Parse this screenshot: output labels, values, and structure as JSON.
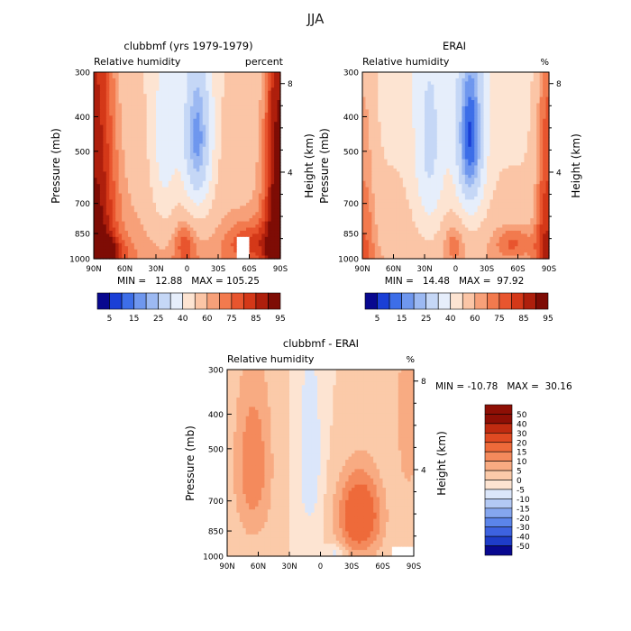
{
  "page_title": "JJA",
  "panels": [
    {
      "id": "model",
      "title": "clubbmf (yrs 1979-1979)",
      "left_label": "Relative humidity",
      "right_label": "percent",
      "stats": "MIN =   12.88   MAX = 105.25"
    },
    {
      "id": "obs",
      "title": "ERAI",
      "left_label": "Relative humidity",
      "right_label": "%",
      "stats": "MIN =   14.48   MAX =  97.92"
    },
    {
      "id": "diff",
      "title": "clubbmf - ERAI",
      "left_label": "Relative humidity",
      "right_label": "%",
      "stats": "MIN = -10.78   MAX =  30.16"
    }
  ],
  "axes": {
    "ylabel": "Pressure (mb)",
    "y2label": "Height (km)",
    "pressure_ticks": [
      "300",
      "400",
      "500",
      "700",
      "850",
      "1000"
    ],
    "height_ticks": [
      "8",
      "4"
    ],
    "lat_ticks": [
      "90N",
      "60N",
      "30N",
      "0",
      "30S",
      "60S",
      "90S"
    ]
  },
  "colorbars": {
    "abs": [
      "5",
      "15",
      "25",
      "40",
      "60",
      "75",
      "85",
      "95"
    ],
    "diff": [
      "50",
      "40",
      "30",
      "20",
      "15",
      "10",
      "5",
      "0",
      "-5",
      "-10",
      "-15",
      "-20",
      "-30",
      "-40",
      "-50"
    ]
  },
  "colors": {
    "abs": [
      "#08088f",
      "#1a3fd6",
      "#3d6ee8",
      "#6f97ee",
      "#9cb9f2",
      "#c5d7f6",
      "#e6eefb",
      "#fde4d2",
      "#fbc5a6",
      "#f7a079",
      "#f27a4e",
      "#e8552e",
      "#d43818",
      "#ae1f0c",
      "#7e0c05"
    ],
    "diff": [
      "#08088f",
      "#1e3cc8",
      "#3d62e0",
      "#5b84ea",
      "#85a6ef",
      "#b3c9f4",
      "#dbe6fa",
      "#fde4d2",
      "#fbcaa9",
      "#f8ab82",
      "#f48a5c",
      "#ee6a3a",
      "#e04a22",
      "#c02b10",
      "#8e0f05"
    ]
  },
  "chart_data": [
    {
      "type": "heatmap",
      "title": "clubbmf (yrs 1979-1979)",
      "xlabel": "",
      "ylabel": "Pressure (mb)",
      "x": [
        90,
        60,
        30,
        0,
        -30,
        -60,
        -90
      ],
      "y": [
        300,
        400,
        500,
        700,
        850,
        1000
      ],
      "min": 12.88,
      "max": 105.25,
      "levels": [
        5,
        10,
        15,
        20,
        25,
        30,
        40,
        50,
        60,
        70,
        75,
        80,
        85,
        90,
        95
      ]
    },
    {
      "type": "heatmap",
      "title": "ERAI",
      "xlabel": "",
      "ylabel": "Pressure (mb)",
      "x": [
        90,
        60,
        30,
        0,
        -30,
        -60,
        -90
      ],
      "y": [
        300,
        400,
        500,
        700,
        850,
        1000
      ],
      "min": 14.48,
      "max": 97.92,
      "levels": [
        5,
        10,
        15,
        20,
        25,
        30,
        40,
        50,
        60,
        70,
        75,
        80,
        85,
        90,
        95
      ]
    },
    {
      "type": "heatmap",
      "title": "clubbmf - ERAI",
      "xlabel": "",
      "ylabel": "Pressure (mb)",
      "x": [
        90,
        60,
        30,
        0,
        -30,
        -60,
        -90
      ],
      "y": [
        300,
        400,
        500,
        700,
        850,
        1000
      ],
      "min": -10.78,
      "max": 30.16,
      "levels": [
        -50,
        -40,
        -30,
        -20,
        -15,
        -10,
        -5,
        0,
        5,
        10,
        15,
        20,
        30,
        40,
        50
      ]
    }
  ]
}
